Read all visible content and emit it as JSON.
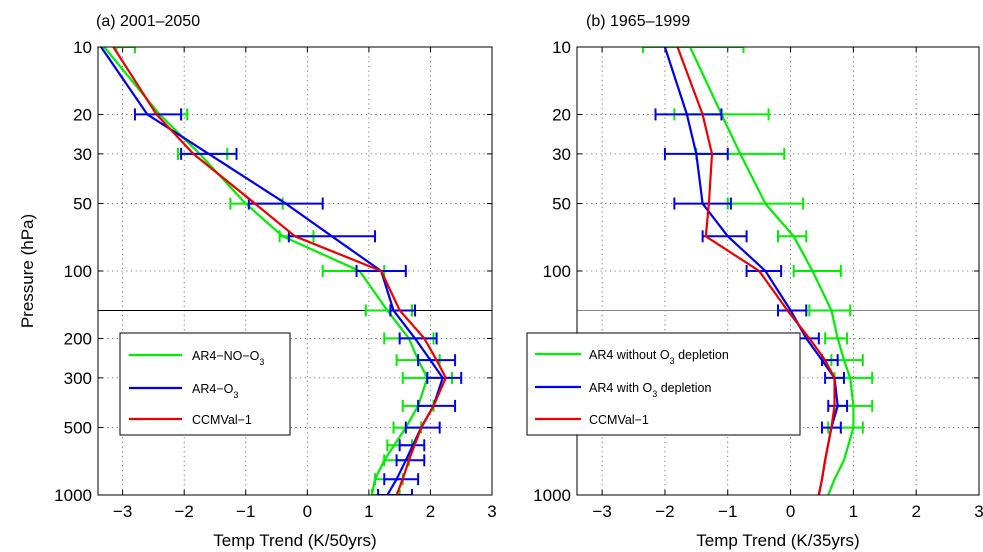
{
  "figure": {
    "ylabel": "Pressure (hPa)"
  },
  "chart_data": [
    {
      "type": "line",
      "title": "(a) 2001–2050",
      "xlabel": "Temp Trend (K/50yrs)",
      "ylabel": "Pressure (hPa)",
      "xlim": [
        -3.4,
        3
      ],
      "ylim": [
        1000,
        10
      ],
      "yscale": "log",
      "grid": true,
      "xticks": [
        "−3",
        "−2",
        "−1",
        "0",
        "1",
        "2",
        "3"
      ],
      "yticks": [
        "10",
        "20",
        "30",
        "50",
        "100",
        "200",
        "300",
        "500",
        "1000"
      ],
      "tropopause_hPa": 150,
      "legend_position": "lower-left",
      "series": [
        {
          "name": "AR4−NO−O",
          "name_sub": "3",
          "color": "#00ee00",
          "pressure": [
            10,
            20,
            30,
            50,
            70,
            100,
            150,
            200,
            250,
            300,
            400,
            500,
            700,
            850,
            1000
          ],
          "values": [
            -3.3,
            -2.4,
            -1.75,
            -1.0,
            -0.4,
            0.85,
            1.3,
            1.65,
            1.8,
            1.95,
            1.8,
            1.6,
            1.25,
            1.1,
            1.05
          ],
          "errors": [
            {
              "p": 10,
              "lo": -3.1,
              "hi": -2.8
            },
            {
              "p": 20,
              "lo": -2.05,
              "hi": -1.95
            },
            {
              "p": 30,
              "lo": -2.1,
              "hi": -1.3
            },
            {
              "p": 50,
              "lo": -1.25,
              "hi": -0.4
            },
            {
              "p": 70,
              "lo": -0.45,
              "hi": 0.1
            },
            {
              "p": 100,
              "lo": 0.25,
              "hi": 1.25
            },
            {
              "p": 150,
              "lo": 0.95,
              "hi": 1.7
            },
            {
              "p": 200,
              "lo": 1.25,
              "hi": 2.05
            },
            {
              "p": 250,
              "lo": 1.45,
              "hi": 2.15
            },
            {
              "p": 300,
              "lo": 1.55,
              "hi": 2.35
            },
            {
              "p": 400,
              "lo": 1.55,
              "hi": 2.05
            },
            {
              "p": 500,
              "lo": 1.4,
              "hi": 1.85
            },
            {
              "p": 600,
              "lo": 1.3,
              "hi": 1.7
            },
            {
              "p": 700,
              "lo": 1.25,
              "hi": 1.65
            },
            {
              "p": 850,
              "lo": 1.1,
              "hi": 1.55
            },
            {
              "p": 1000,
              "lo": 1.05,
              "hi": 1.5
            }
          ]
        },
        {
          "name": "AR4−O",
          "name_sub": "3",
          "color": "#0000ee",
          "pressure": [
            10,
            20,
            30,
            50,
            70,
            100,
            150,
            200,
            250,
            300,
            400,
            500,
            700,
            850,
            1000
          ],
          "values": [
            -3.35,
            -2.6,
            -1.6,
            -0.35,
            0.4,
            1.2,
            1.4,
            1.75,
            2.0,
            2.2,
            2.05,
            1.85,
            1.6,
            1.45,
            1.3
          ],
          "errors": [
            {
              "p": 20,
              "lo": -2.8,
              "hi": -2.05
            },
            {
              "p": 30,
              "lo": -2.05,
              "hi": -1.15
            },
            {
              "p": 50,
              "lo": -0.95,
              "hi": 0.25
            },
            {
              "p": 70,
              "lo": -0.3,
              "hi": 1.1
            },
            {
              "p": 100,
              "lo": 0.8,
              "hi": 1.6
            },
            {
              "p": 150,
              "lo": 1.35,
              "hi": 1.75
            },
            {
              "p": 200,
              "lo": 1.5,
              "hi": 2.1
            },
            {
              "p": 250,
              "lo": 1.8,
              "hi": 2.4
            },
            {
              "p": 300,
              "lo": 1.95,
              "hi": 2.5
            },
            {
              "p": 400,
              "lo": 1.8,
              "hi": 2.4
            },
            {
              "p": 500,
              "lo": 1.6,
              "hi": 2.15
            },
            {
              "p": 600,
              "lo": 1.5,
              "hi": 1.9
            },
            {
              "p": 700,
              "lo": 1.45,
              "hi": 1.9
            },
            {
              "p": 850,
              "lo": 1.25,
              "hi": 1.8
            },
            {
              "p": 1000,
              "lo": 1.15,
              "hi": 1.7
            }
          ]
        },
        {
          "name": "CCMVal−1",
          "name_sub": "",
          "color": "#ee0000",
          "pressure": [
            10,
            20,
            30,
            50,
            70,
            100,
            150,
            200,
            250,
            300,
            400,
            500,
            700,
            850,
            1000
          ],
          "values": [
            -3.15,
            -2.45,
            -1.85,
            -0.85,
            -0.2,
            1.2,
            1.5,
            1.9,
            2.1,
            2.25,
            2.05,
            1.85,
            1.65,
            1.55,
            1.45
          ],
          "errors": []
        }
      ]
    },
    {
      "type": "line",
      "title": "(b) 1965–1999",
      "xlabel": "Temp Trend (K/35yrs)",
      "ylabel": "",
      "xlim": [
        -3.4,
        3
      ],
      "ylim": [
        1000,
        10
      ],
      "yscale": "log",
      "grid": true,
      "xticks": [
        "−3",
        "−2",
        "−1",
        "0",
        "1",
        "2",
        "3"
      ],
      "yticks": [
        "10",
        "20",
        "30",
        "50",
        "100",
        "200",
        "300",
        "500",
        "1000"
      ],
      "tropopause_hPa": 150,
      "legend_position": "lower-left",
      "series": [
        {
          "name": "AR4 without O",
          "name_sub": "3",
          "name_after": " depletion",
          "color": "#00ee00",
          "pressure": [
            10,
            20,
            30,
            50,
            70,
            100,
            150,
            200,
            250,
            300,
            400,
            500,
            700,
            850,
            1000
          ],
          "values": [
            -1.6,
            -1.1,
            -0.8,
            -0.4,
            0.05,
            0.35,
            0.65,
            0.75,
            0.85,
            0.95,
            1.0,
            1.0,
            0.85,
            0.7,
            0.6
          ],
          "errors": [
            {
              "p": 10,
              "lo": -2.35,
              "hi": -0.75
            },
            {
              "p": 20,
              "lo": -1.85,
              "hi": -0.35
            },
            {
              "p": 30,
              "lo": -1.5,
              "hi": -0.1
            },
            {
              "p": 50,
              "lo": -1.0,
              "hi": 0.2
            },
            {
              "p": 70,
              "lo": -0.2,
              "hi": 0.25
            },
            {
              "p": 100,
              "lo": 0.05,
              "hi": 0.8
            },
            {
              "p": 150,
              "lo": 0.3,
              "hi": 0.95
            },
            {
              "p": 200,
              "lo": 0.55,
              "hi": 0.9
            },
            {
              "p": 250,
              "lo": 0.65,
              "hi": 1.15
            },
            {
              "p": 300,
              "lo": 0.7,
              "hi": 1.3
            },
            {
              "p": 400,
              "lo": 0.7,
              "hi": 1.3
            },
            {
              "p": 500,
              "lo": 0.6,
              "hi": 1.15
            }
          ]
        },
        {
          "name": "AR4 with O",
          "name_sub": "3",
          "name_after": " depletion",
          "color": "#0000ee",
          "pressure": [
            10,
            20,
            30,
            50,
            70,
            100,
            150,
            200,
            250,
            300,
            400,
            500,
            700,
            850,
            1000
          ],
          "values": [
            -2.0,
            -1.65,
            -1.5,
            -1.4,
            -1.0,
            -0.4,
            0.0,
            0.25,
            0.5,
            0.7,
            0.75,
            0.65,
            0.55,
            0.5,
            0.45
          ],
          "errors": [
            {
              "p": 20,
              "lo": -2.15,
              "hi": -1.1
            },
            {
              "p": 30,
              "lo": -2.0,
              "hi": -1.0
            },
            {
              "p": 50,
              "lo": -1.85,
              "hi": -0.95
            },
            {
              "p": 70,
              "lo": -1.4,
              "hi": -0.7
            },
            {
              "p": 100,
              "lo": -0.7,
              "hi": -0.15
            },
            {
              "p": 150,
              "lo": -0.2,
              "hi": 0.25
            },
            {
              "p": 200,
              "lo": 0.1,
              "hi": 0.45
            },
            {
              "p": 250,
              "lo": 0.5,
              "hi": 0.75
            },
            {
              "p": 300,
              "lo": 0.55,
              "hi": 0.85
            },
            {
              "p": 400,
              "lo": 0.6,
              "hi": 0.9
            },
            {
              "p": 500,
              "lo": 0.5,
              "hi": 0.8
            }
          ]
        },
        {
          "name": "CCMVal−1",
          "name_sub": "",
          "name_after": "",
          "color": "#ee0000",
          "pressure": [
            10,
            20,
            30,
            50,
            70,
            100,
            150,
            200,
            250,
            300,
            400,
            500,
            700,
            850,
            1000
          ],
          "values": [
            -1.8,
            -1.4,
            -1.25,
            -1.3,
            -1.35,
            -0.5,
            -0.05,
            0.3,
            0.55,
            0.7,
            0.7,
            0.65,
            0.55,
            0.5,
            0.45
          ],
          "errors": []
        }
      ]
    }
  ]
}
